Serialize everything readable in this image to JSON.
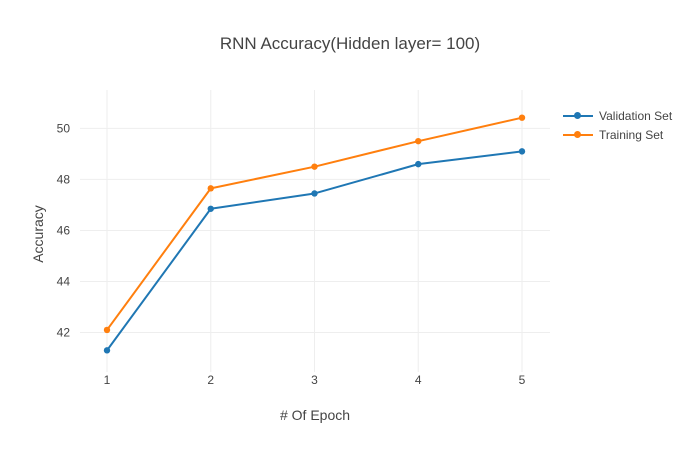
{
  "chart_data": {
    "type": "line",
    "title": "RNN Accuracy(Hidden layer= 100)",
    "xlabel": "# Of Epoch",
    "ylabel": "Accuracy",
    "x": [
      1,
      2,
      3,
      4,
      5
    ],
    "x_tick_labels": [
      "1",
      "2",
      "3",
      "4",
      "5"
    ],
    "y_ticks": [
      42,
      44,
      46,
      48,
      50
    ],
    "y_tick_labels": [
      "42",
      "44",
      "46",
      "48",
      "50"
    ],
    "xlim": [
      0.99,
      5.01
    ],
    "ylim": [
      41.0,
      50.9
    ],
    "grid": true,
    "legend_position": "top-right",
    "series": [
      {
        "name": "Validation Set",
        "color": "#1f77b4",
        "values": [
          41.3,
          46.85,
          47.45,
          48.6,
          49.1
        ]
      },
      {
        "name": "Training Set",
        "color": "#ff7f0e",
        "values": [
          42.1,
          47.65,
          48.5,
          49.5,
          50.42
        ]
      }
    ]
  }
}
